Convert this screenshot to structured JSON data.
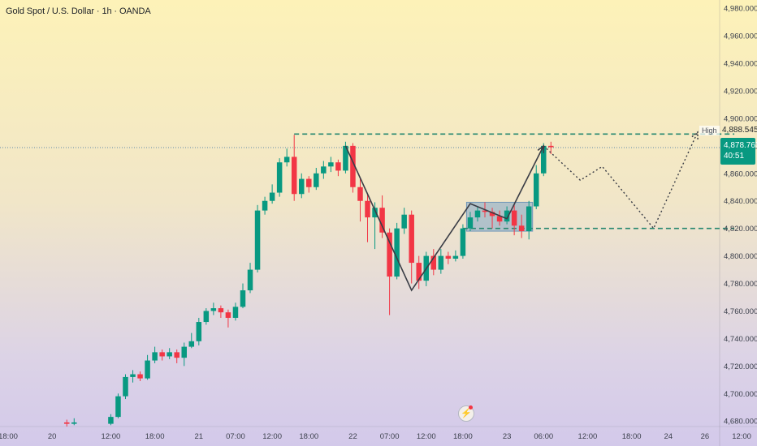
{
  "title": "Gold Spot / U.S. Dollar · 1h · OANDA",
  "colors": {
    "up": "#089981",
    "down": "#f23645",
    "level_line": "#26876f",
    "box_fill": "#7fa6c8",
    "path": "#3a3d46",
    "axis_text": "#3a3f4b"
  },
  "price_badge": {
    "value": "4,878.765",
    "countdown": "40:51"
  },
  "high_marker": {
    "label": "High",
    "value": "4,888.545"
  },
  "flash_icon": "lightning-icon",
  "chart_data": {
    "type": "candlestick",
    "y_axis": {
      "ylim": [
        4676,
        4986
      ],
      "ticks": [
        4680,
        4700,
        4720,
        4740,
        4760,
        4780,
        4800,
        4820,
        4840,
        4860,
        4880,
        4900,
        4920,
        4940,
        4960,
        4980
      ],
      "tick_labels": [
        "4,680.000",
        "4,700.000",
        "4,720.000",
        "4,740.000",
        "4,760.000",
        "4,780.000",
        "4,800.000",
        "4,820.000",
        "4,840.000",
        "4,860.000",
        "4,880.000",
        "4,900.000",
        "4,920.000",
        "4,940.000",
        "4,960.000",
        "4,980.000"
      ]
    },
    "x_axis": {
      "index_range": [
        0,
        97
      ],
      "ticks": [
        {
          "i": 0,
          "label": "18:00"
        },
        {
          "i": 6,
          "label": "20"
        },
        {
          "i": 14,
          "label": "12:00"
        },
        {
          "i": 20,
          "label": "18:00"
        },
        {
          "i": 26,
          "label": "21"
        },
        {
          "i": 31,
          "label": "07:00"
        },
        {
          "i": 36,
          "label": "12:00"
        },
        {
          "i": 41,
          "label": "18:00"
        },
        {
          "i": 47,
          "label": "22"
        },
        {
          "i": 52,
          "label": "07:00"
        },
        {
          "i": 57,
          "label": "12:00"
        },
        {
          "i": 62,
          "label": "18:00"
        },
        {
          "i": 68,
          "label": "23"
        },
        {
          "i": 73,
          "label": "06:00"
        },
        {
          "i": 79,
          "label": "12:00"
        },
        {
          "i": 85,
          "label": "18:00"
        },
        {
          "i": 90,
          "label": "24"
        },
        {
          "i": 95,
          "label": "26"
        },
        {
          "i": 100,
          "label": "12:00"
        }
      ]
    },
    "candles": [
      [
        8,
        4679,
        4678,
        4681,
        4676
      ],
      [
        9,
        4678,
        4679,
        4682,
        4677
      ],
      [
        14,
        4678,
        4683,
        4685,
        4677
      ],
      [
        15,
        4683,
        4698,
        4700,
        4682
      ],
      [
        16,
        4698,
        4712,
        4714,
        4696
      ],
      [
        17,
        4712,
        4714,
        4717,
        4708
      ],
      [
        18,
        4714,
        4711,
        4716,
        4709
      ],
      [
        19,
        4711,
        4724,
        4728,
        4710
      ],
      [
        20,
        4724,
        4730,
        4734,
        4722
      ],
      [
        21,
        4730,
        4727,
        4732,
        4724
      ],
      [
        22,
        4727,
        4730,
        4733,
        4725
      ],
      [
        23,
        4730,
        4726,
        4732,
        4722
      ],
      [
        24,
        4726,
        4734,
        4737,
        4720
      ],
      [
        25,
        4734,
        4738,
        4744,
        4733
      ],
      [
        26,
        4738,
        4752,
        4755,
        4735
      ],
      [
        27,
        4752,
        4760,
        4762,
        4750
      ],
      [
        28,
        4760,
        4762,
        4766,
        4757
      ],
      [
        29,
        4762,
        4759,
        4764,
        4755
      ],
      [
        30,
        4759,
        4755,
        4761,
        4748
      ],
      [
        31,
        4755,
        4763,
        4766,
        4753
      ],
      [
        32,
        4763,
        4775,
        4780,
        4762
      ],
      [
        33,
        4775,
        4790,
        4795,
        4773
      ],
      [
        34,
        4790,
        4833,
        4837,
        4788
      ],
      [
        35,
        4833,
        4840,
        4843,
        4830
      ],
      [
        36,
        4840,
        4846,
        4852,
        4838
      ],
      [
        37,
        4846,
        4868,
        4871,
        4843
      ],
      [
        38,
        4868,
        4872,
        4878,
        4865
      ],
      [
        39,
        4872,
        4845,
        4888,
        4840
      ],
      [
        40,
        4845,
        4856,
        4860,
        4842
      ],
      [
        41,
        4856,
        4850,
        4858,
        4846
      ],
      [
        42,
        4850,
        4860,
        4864,
        4848
      ],
      [
        43,
        4860,
        4865,
        4869,
        4856
      ],
      [
        44,
        4865,
        4868,
        4872,
        4861
      ],
      [
        45,
        4868,
        4862,
        4870,
        4858
      ],
      [
        46,
        4862,
        4880,
        4883,
        4860
      ],
      [
        47,
        4880,
        4850,
        4882,
        4846
      ],
      [
        48,
        4850,
        4840,
        4856,
        4825
      ],
      [
        49,
        4840,
        4828,
        4845,
        4810
      ],
      [
        50,
        4828,
        4835,
        4839,
        4805
      ],
      [
        51,
        4835,
        4817,
        4844,
        4813
      ],
      [
        52,
        4817,
        4785,
        4820,
        4757
      ],
      [
        53,
        4785,
        4820,
        4824,
        4783
      ],
      [
        54,
        4820,
        4830,
        4835,
        4816
      ],
      [
        55,
        4830,
        4795,
        4833,
        4780
      ],
      [
        56,
        4795,
        4782,
        4800,
        4776
      ],
      [
        57,
        4782,
        4800,
        4803,
        4778
      ],
      [
        58,
        4800,
        4790,
        4805,
        4786
      ],
      [
        59,
        4790,
        4800,
        4805,
        4787
      ],
      [
        60,
        4800,
        4798,
        4803,
        4794
      ],
      [
        61,
        4798,
        4800,
        4804,
        4796
      ],
      [
        62,
        4800,
        4820,
        4823,
        4798
      ],
      [
        63,
        4820,
        4828,
        4832,
        4818
      ],
      [
        64,
        4828,
        4833,
        4836,
        4825
      ],
      [
        65,
        4833,
        4832,
        4839,
        4828
      ],
      [
        66,
        4832,
        4829,
        4835,
        4820
      ],
      [
        67,
        4829,
        4825,
        4833,
        4822
      ],
      [
        68,
        4825,
        4833,
        4836,
        4823
      ],
      [
        69,
        4833,
        4822,
        4838,
        4815
      ],
      [
        70,
        4822,
        4818,
        4830,
        4813
      ],
      [
        71,
        4818,
        4836,
        4840,
        4812
      ],
      [
        72,
        4836,
        4860,
        4866,
        4834
      ],
      [
        73,
        4860,
        4880,
        4882,
        4858
      ],
      [
        74,
        4880,
        4879,
        4883,
        4874
      ]
    ],
    "annotations": {
      "high_line": {
        "y": 4888.545,
        "i_start": 39,
        "i_end": 99
      },
      "support_line": {
        "y": 4820,
        "i_start": 62,
        "i_end": 99
      },
      "current_price_line": {
        "y": 4878.765
      },
      "consolidation_box": {
        "i_start": 62.5,
        "i_end": 71.5,
        "y_low": 4818,
        "y_high": 4839
      },
      "zigzag": [
        [
          46,
          4880
        ],
        [
          55,
          4775
        ],
        [
          63,
          4838
        ],
        [
          68,
          4827
        ],
        [
          73,
          4880
        ]
      ],
      "projection": [
        [
          73,
          4880
        ],
        [
          78,
          4855
        ],
        [
          81,
          4865
        ],
        [
          88,
          4820
        ],
        [
          94,
          4890
        ]
      ]
    }
  }
}
